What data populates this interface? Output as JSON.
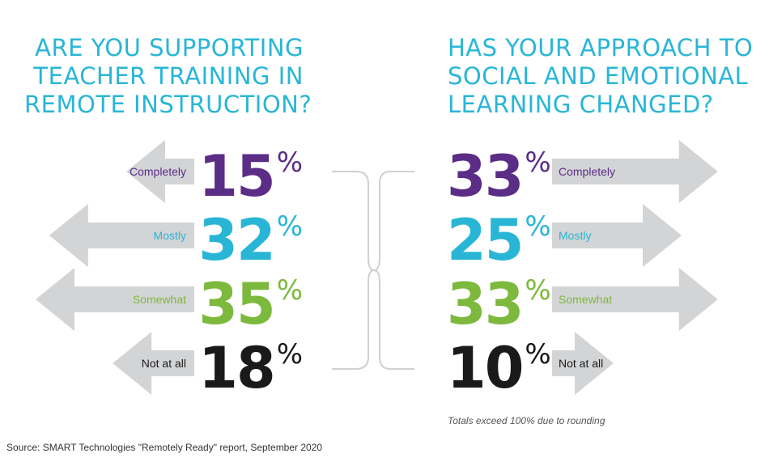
{
  "colors": {
    "title": "#29b6d6",
    "arrow": "#d3d4d6",
    "bracket": "#cfd0d2",
    "Completely": "#5b2d86",
    "Mostly": "#29b6d6",
    "Somewhat": "#7cb93d",
    "Not at all": "#1a1a1a"
  },
  "left_title": [
    "ARE YOU SUPPORTING",
    "TEACHER TRAINING IN",
    "REMOTE INSTRUCTION?"
  ],
  "right_title": [
    "HAS YOUR APPROACH TO",
    "SOCIAL AND EMOTIONAL",
    "LEARNING CHANGED?"
  ],
  "note": "Totals exceed 100% due to rounding",
  "source": "Source: SMART Technologies \"Remotely Ready\" report, September 2020",
  "chart_data": [
    {
      "type": "bar",
      "title": "ARE YOU SUPPORTING TEACHER TRAINING IN REMOTE INSTRUCTION?",
      "categories": [
        "Completely",
        "Mostly",
        "Somewhat",
        "Not at all"
      ],
      "values": [
        15,
        32,
        35,
        18
      ],
      "unit": "%",
      "direction": "left"
    },
    {
      "type": "bar",
      "title": "HAS YOUR APPROACH TO SOCIAL AND EMOTIONAL LEARNING CHANGED?",
      "categories": [
        "Completely",
        "Mostly",
        "Somewhat",
        "Not at all"
      ],
      "values": [
        33,
        25,
        33,
        10
      ],
      "unit": "%",
      "direction": "right"
    }
  ]
}
